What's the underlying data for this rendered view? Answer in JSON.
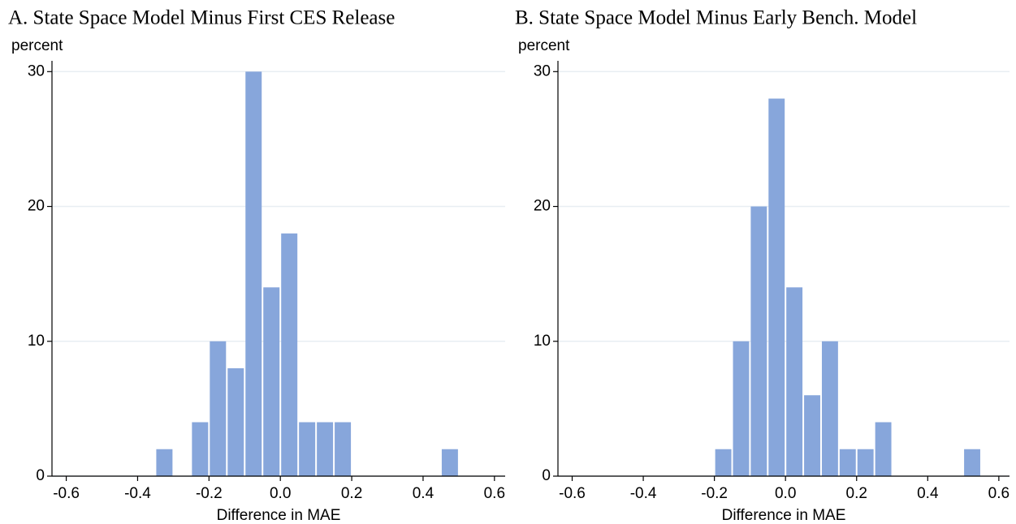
{
  "chart_data": [
    {
      "type": "histogram",
      "title": "A. State Space Model Minus First CES Release",
      "y_label": "percent",
      "x_label": "Difference in MAE",
      "bins": [
        -0.35,
        -0.3,
        -0.25,
        -0.2,
        -0.15,
        -0.1,
        -0.05,
        0,
        0.05,
        0.1,
        0.15,
        0.2,
        0.25,
        0.3,
        0.35,
        0.4,
        0.45,
        0.5
      ],
      "values": [
        2,
        0,
        4,
        10,
        8,
        30,
        14,
        18,
        4,
        4,
        4,
        0,
        0,
        0,
        0,
        0,
        2
      ],
      "color": "#87a6db",
      "grid": true,
      "xlim": [
        -0.64,
        0.63
      ],
      "xticks": [
        -0.6,
        -0.4,
        -0.2,
        {
          "value": 0,
          "label": "0.0"
        },
        0.2,
        0.4,
        0.6
      ],
      "ylim": [
        0,
        30.8
      ],
      "yticks": [
        0,
        10,
        20,
        30
      ]
    },
    {
      "type": "histogram",
      "title": "B. State Space Model Minus Early Bench. Model",
      "y_label": "percent",
      "x_label": "Difference in MAE",
      "bins": [
        -0.2,
        -0.15,
        -0.1,
        -0.05,
        0,
        0.05,
        0.1,
        0.15,
        0.2,
        0.25,
        0.3,
        0.35,
        0.4,
        0.45,
        0.5,
        0.55
      ],
      "values": [
        2,
        10,
        20,
        28,
        14,
        6,
        10,
        2,
        2,
        4,
        0,
        0,
        0,
        0,
        2
      ],
      "color": "#87a6db",
      "grid": true,
      "xlim": [
        -0.64,
        0.63
      ],
      "xticks": [
        -0.6,
        -0.4,
        -0.2,
        {
          "value": 0,
          "label": "0.0"
        },
        0.2,
        0.4,
        0.6
      ],
      "ylim": [
        0,
        30.8
      ],
      "yticks": [
        0,
        10,
        20,
        30
      ]
    }
  ]
}
